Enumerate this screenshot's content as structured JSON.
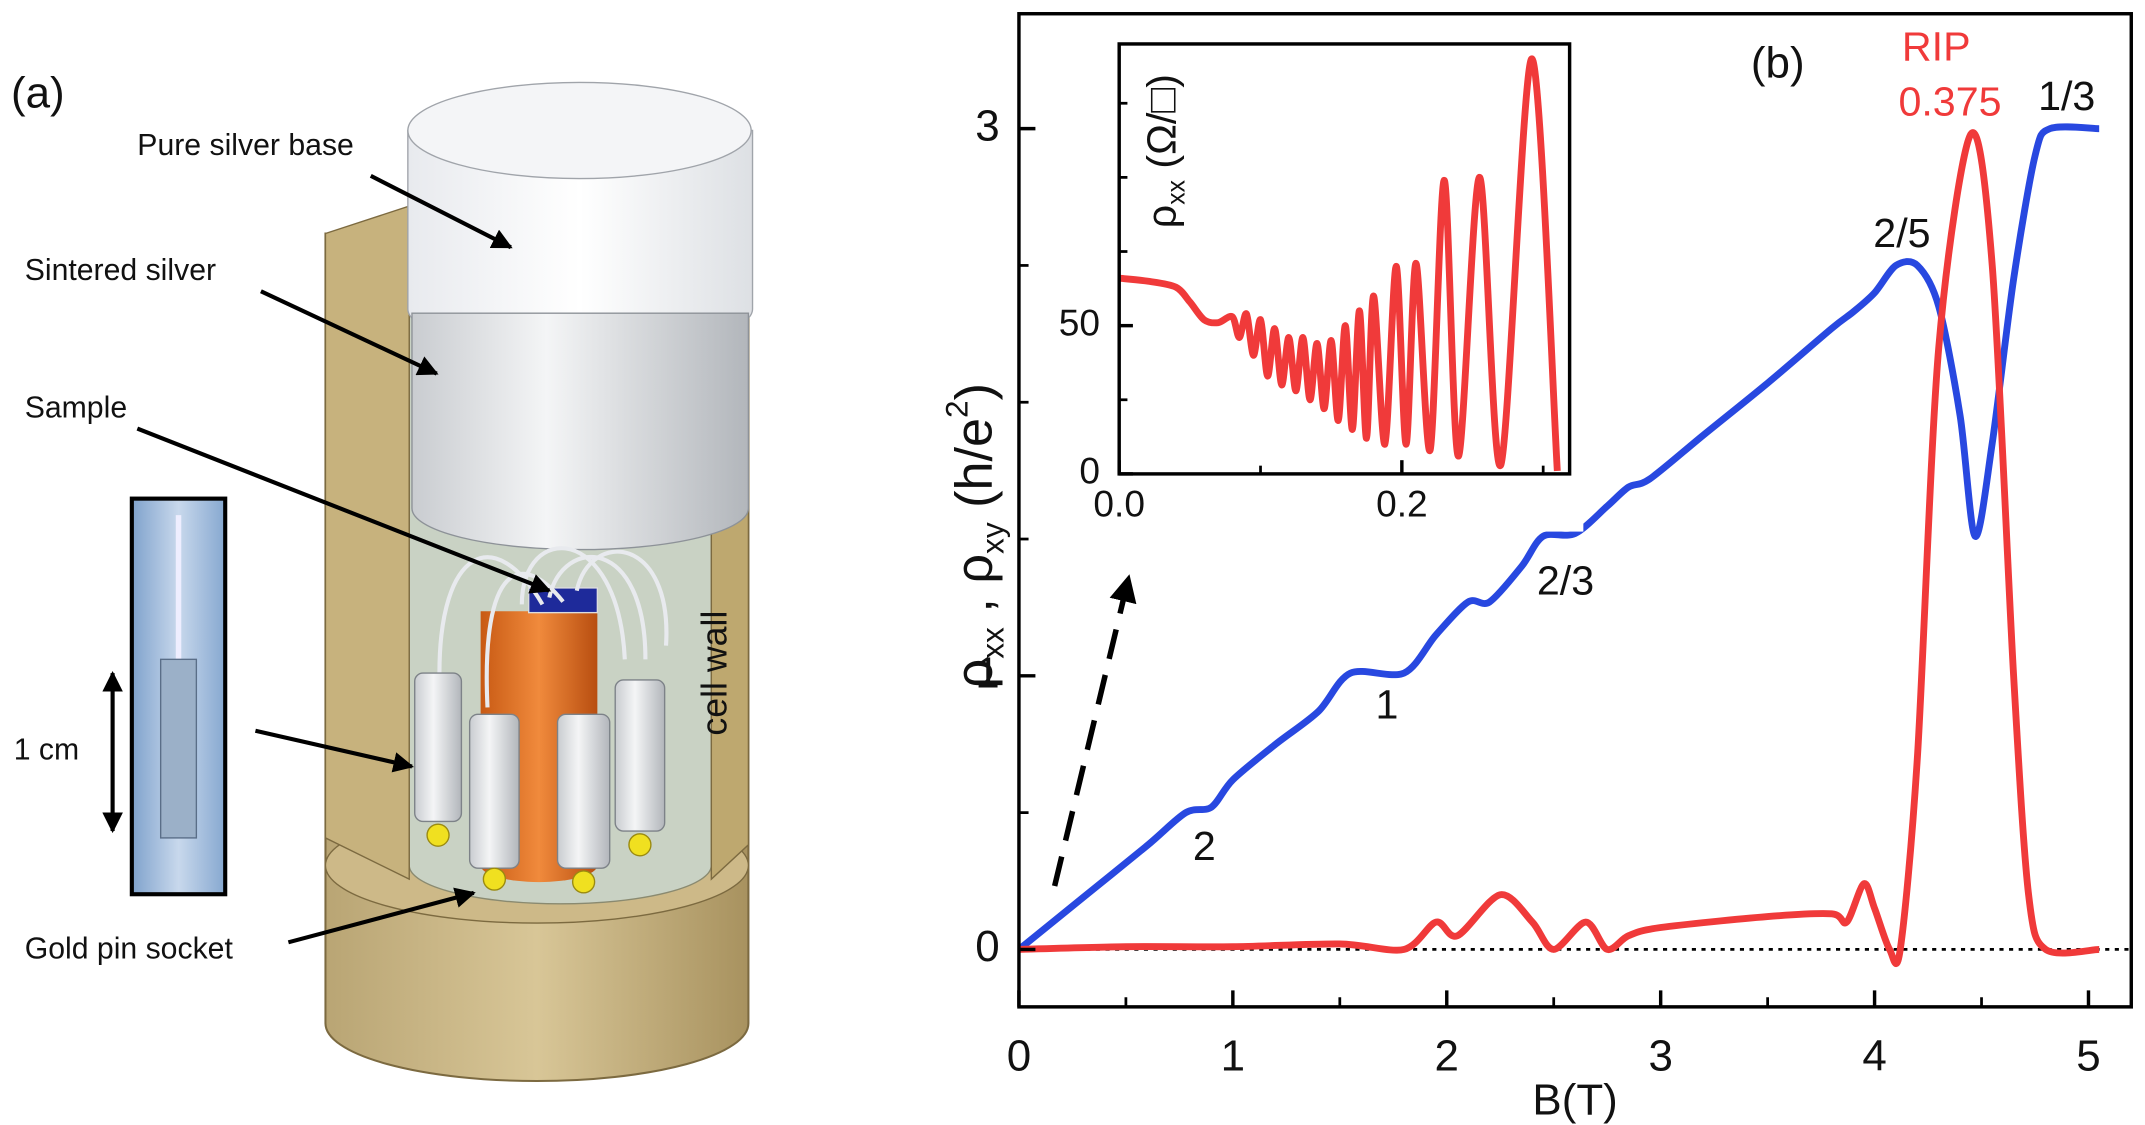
{
  "panel_a": {
    "label": "(a)",
    "callouts": [
      "Pure silver base",
      "Sintered silver",
      "Sample",
      "Gold pin socket"
    ],
    "cell_wall": "cell wall",
    "scale_bar": "1 cm"
  },
  "chart_data": [
    {
      "type": "line",
      "label": "(b)",
      "xlabel": "B(T)",
      "ylabel_parts": [
        {
          "text": "ρ"
        },
        {
          "text": "xx",
          "sub": true
        },
        {
          "text": " , "
        },
        {
          "text": "ρ"
        },
        {
          "text": "xy",
          "sub": true
        },
        {
          "text": " (h/e"
        },
        {
          "text": "2",
          "sup": true
        },
        {
          "text": ")"
        }
      ],
      "xlim": [
        0,
        5.2
      ],
      "ylim": [
        -0.21,
        3.42
      ],
      "xticks": [
        0,
        1,
        2,
        3,
        4,
        5
      ],
      "xminor": [
        0.5,
        1.5,
        2.5,
        3.5,
        4.5
      ],
      "yticks": [
        0,
        1,
        3
      ],
      "yminor": [
        0.5,
        1.5,
        2,
        2.5
      ],
      "zero_line": true,
      "annotations": [
        "2",
        "1",
        "2/3",
        "2/5",
        "1/3",
        "RIP",
        "0.375"
      ],
      "series": [
        {
          "color": "#2848e0",
          "x": [
            0,
            0.3,
            0.6,
            0.78,
            0.9,
            1.0,
            1.2,
            1.4,
            1.55,
            1.8,
            1.95,
            2.1,
            2.2,
            2.35,
            2.45,
            2.6,
            2.75,
            2.85,
            2.95,
            3.2,
            3.5,
            3.8,
            3.9,
            4.0,
            4.1,
            4.2,
            4.3,
            4.4,
            4.47,
            4.55,
            4.65,
            4.75,
            4.82,
            5.05
          ],
          "values": [
            0,
            0.19,
            0.38,
            0.5,
            0.52,
            0.62,
            0.75,
            0.87,
            1.01,
            1.01,
            1.15,
            1.27,
            1.27,
            1.4,
            1.51,
            1.52,
            1.62,
            1.69,
            1.72,
            1.88,
            2.07,
            2.27,
            2.33,
            2.4,
            2.5,
            2.5,
            2.35,
            1.95,
            1.51,
            1.85,
            2.45,
            2.9,
            3.0,
            3.0
          ]
        },
        {
          "color": "#f03a3a",
          "x": [
            0,
            0.5,
            1.0,
            1.5,
            1.8,
            1.95,
            2.05,
            2.25,
            2.4,
            2.5,
            2.65,
            2.75,
            2.85,
            3.0,
            3.5,
            3.8,
            3.87,
            3.95,
            4.0,
            4.07,
            4.12,
            4.2,
            4.3,
            4.45,
            4.55,
            4.65,
            4.72,
            4.8,
            5.05
          ],
          "values": [
            0,
            0.01,
            0.01,
            0.02,
            0,
            0.1,
            0.05,
            0.2,
            0.1,
            0,
            0.1,
            0,
            0.05,
            0.08,
            0.12,
            0.13,
            0.1,
            0.24,
            0.15,
            0,
            0,
            0.7,
            2.2,
            2.98,
            2.5,
            1.0,
            0.2,
            0,
            0
          ]
        }
      ]
    },
    {
      "type": "line",
      "ylabel_parts": [
        {
          "text": "ρ"
        },
        {
          "text": "xx",
          "sub": true
        },
        {
          "text": " (Ω/□)"
        }
      ],
      "xlim": [
        0,
        0.3187
      ],
      "ylim": [
        0,
        145
      ],
      "xticks": [
        {
          "value": 0,
          "label": "0.0"
        },
        0.2
      ],
      "xminor": [
        0.1,
        0.3
      ],
      "yticks": [
        0,
        50
      ],
      "yminor": [
        25,
        75,
        100,
        125
      ],
      "series": [
        {
          "color": "#f03a3a",
          "x": [
            0,
            0.02,
            0.04,
            0.05,
            0.06,
            0.07,
            0.08,
            0.085,
            0.09,
            0.095,
            0.1,
            0.105,
            0.11,
            0.115,
            0.12,
            0.125,
            0.13,
            0.135,
            0.14,
            0.145,
            0.15,
            0.155,
            0.16,
            0.165,
            0.17,
            0.175,
            0.18,
            0.188,
            0.196,
            0.203,
            0.21,
            0.22,
            0.23,
            0.24,
            0.255,
            0.27,
            0.292,
            0.31
          ],
          "values": [
            66,
            65,
            63,
            58,
            52,
            51,
            53,
            46,
            54,
            40,
            52,
            33,
            49,
            30,
            46,
            28,
            46,
            25,
            44,
            22,
            45,
            18,
            50,
            15,
            55,
            12,
            60,
            10,
            70,
            10,
            71,
            8,
            99,
            6,
            100,
            3,
            140,
            1
          ]
        }
      ]
    }
  ]
}
